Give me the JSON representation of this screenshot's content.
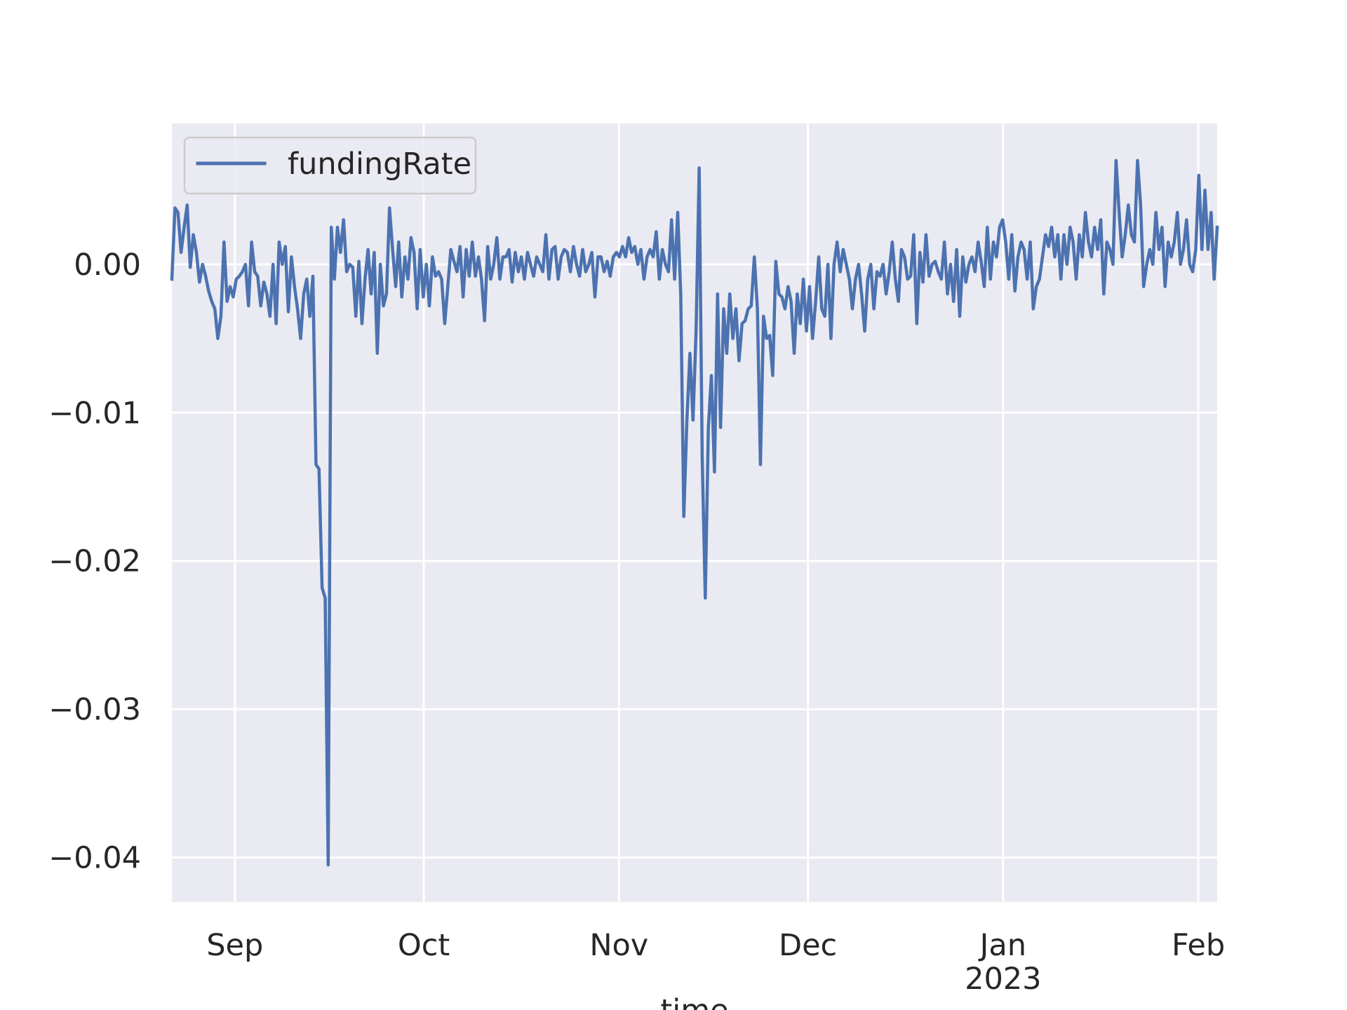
{
  "chart_data": {
    "type": "line",
    "title": "",
    "xlabel": "time",
    "ylabel": "",
    "grid": true,
    "legend_position": "upper-left",
    "x_domain": [
      "2022-08-22",
      "2023-02-04"
    ],
    "ylim": [
      -0.043,
      0.0095
    ],
    "x_ticks": [
      {
        "date": "2022-09-01",
        "label": "Sep",
        "sublabel": ""
      },
      {
        "date": "2022-10-01",
        "label": "Oct",
        "sublabel": ""
      },
      {
        "date": "2022-11-01",
        "label": "Nov",
        "sublabel": ""
      },
      {
        "date": "2022-12-01",
        "label": "Dec",
        "sublabel": ""
      },
      {
        "date": "2023-01-01",
        "label": "Jan",
        "sublabel": "2023"
      },
      {
        "date": "2023-02-01",
        "label": "Feb",
        "sublabel": ""
      }
    ],
    "y_ticks": [
      {
        "value": 0.0,
        "label": "0.00"
      },
      {
        "value": -0.01,
        "label": "−0.01"
      },
      {
        "value": -0.02,
        "label": "−0.02"
      },
      {
        "value": -0.03,
        "label": "−0.03"
      },
      {
        "value": -0.04,
        "label": "−0.04"
      }
    ],
    "series": [
      {
        "name": "fundingRate",
        "color": "#4c72b0",
        "start": "2022-08-22",
        "step_days": 0.3333,
        "values": [
          -0.001,
          0.0038,
          0.0035,
          0.0008,
          0.0025,
          0.004,
          -0.0002,
          0.002,
          0.0008,
          -0.0012,
          0.0,
          -0.0008,
          -0.0018,
          -0.0025,
          -0.003,
          -0.005,
          -0.0035,
          0.0015,
          -0.0025,
          -0.0015,
          -0.0022,
          -0.001,
          -0.0008,
          -0.0005,
          0.0,
          -0.0028,
          0.0015,
          -0.0005,
          -0.0008,
          -0.0028,
          -0.0012,
          -0.002,
          -0.0035,
          0.0,
          -0.004,
          0.0015,
          0.0,
          0.0012,
          -0.0032,
          0.0005,
          -0.0015,
          -0.003,
          -0.005,
          -0.002,
          -0.001,
          -0.0035,
          -0.0008,
          -0.0135,
          -0.0138,
          -0.0218,
          -0.0225,
          -0.0405,
          0.0025,
          -0.001,
          0.0025,
          0.0008,
          0.003,
          -0.0005,
          0.0,
          -0.0002,
          -0.0035,
          0.0002,
          -0.004,
          -0.001,
          0.001,
          -0.002,
          0.0008,
          -0.006,
          0.0,
          -0.0028,
          -0.002,
          0.0038,
          0.001,
          -0.0015,
          0.0015,
          -0.0022,
          0.0005,
          -0.001,
          0.0018,
          0.0008,
          -0.003,
          0.001,
          -0.0022,
          0.0,
          -0.0028,
          0.0005,
          -0.0008,
          -0.0005,
          -0.001,
          -0.004,
          -0.0015,
          0.001,
          0.0002,
          -0.0005,
          0.0012,
          -0.0022,
          0.001,
          -0.0008,
          0.0015,
          -0.0008,
          0.0005,
          -0.001,
          -0.0038,
          0.0012,
          -0.001,
          0.0,
          0.0018,
          -0.001,
          0.0005,
          0.0005,
          0.001,
          -0.0012,
          0.0008,
          -0.0005,
          0.0005,
          -0.001,
          0.0008,
          0.0,
          -0.0008,
          0.0005,
          0.0,
          -0.0005,
          0.002,
          -0.001,
          0.001,
          0.0012,
          -0.001,
          0.0005,
          0.001,
          0.0008,
          -0.0005,
          0.0012,
          0.0,
          -0.0008,
          0.001,
          -0.0005,
          0.0,
          0.0008,
          -0.0022,
          0.0005,
          0.0005,
          -0.0005,
          0.0002,
          -0.0008,
          0.0005,
          0.0008,
          0.0005,
          0.0012,
          0.0005,
          0.0018,
          0.0008,
          0.0012,
          0.0,
          0.001,
          -0.001,
          0.0005,
          0.001,
          0.0005,
          0.0022,
          -0.001,
          0.001,
          0.0,
          -0.0005,
          0.003,
          -0.001,
          0.0035,
          -0.002,
          -0.017,
          -0.0105,
          -0.006,
          -0.0105,
          -0.0045,
          0.0065,
          -0.013,
          -0.0225,
          -0.011,
          -0.0075,
          -0.014,
          -0.002,
          -0.011,
          -0.003,
          -0.006,
          -0.002,
          -0.005,
          -0.003,
          -0.0065,
          -0.004,
          -0.0038,
          -0.003,
          -0.0028,
          0.0005,
          -0.003,
          -0.0135,
          -0.0035,
          -0.005,
          -0.0048,
          -0.0075,
          0.0002,
          -0.002,
          -0.0022,
          -0.003,
          -0.0015,
          -0.0025,
          -0.006,
          -0.002,
          -0.004,
          -0.001,
          -0.0045,
          -0.0015,
          -0.005,
          -0.0025,
          0.0005,
          -0.003,
          -0.0035,
          0.0,
          -0.005,
          0.0,
          0.0015,
          -0.0005,
          0.001,
          0.0,
          -0.001,
          -0.003,
          -0.001,
          0.0,
          -0.002,
          -0.0045,
          -0.001,
          0.0,
          -0.003,
          -0.0005,
          -0.0008,
          0.0,
          -0.002,
          -0.0005,
          0.0015,
          -0.001,
          -0.0025,
          0.001,
          0.0005,
          -0.001,
          -0.0008,
          0.002,
          -0.004,
          0.0008,
          -0.0012,
          0.002,
          -0.0008,
          0.0,
          0.0002,
          -0.0005,
          -0.001,
          0.0015,
          -0.002,
          0.0,
          -0.0025,
          0.001,
          -0.0035,
          0.0005,
          -0.0012,
          0.0,
          0.0005,
          -0.0005,
          0.0015,
          0.0002,
          -0.0015,
          0.0025,
          -0.001,
          0.0015,
          0.0005,
          0.0025,
          0.003,
          0.0015,
          -0.001,
          0.002,
          -0.0018,
          0.0005,
          0.0015,
          0.001,
          -0.001,
          0.0015,
          -0.003,
          -0.0015,
          -0.001,
          0.0005,
          0.002,
          0.0012,
          0.0025,
          0.0005,
          0.002,
          -0.001,
          0.002,
          0.0,
          0.0025,
          0.0015,
          -0.001,
          0.002,
          0.0005,
          0.0035,
          0.0015,
          0.0005,
          0.0025,
          0.001,
          0.003,
          -0.002,
          0.0015,
          0.001,
          0.0,
          0.007,
          0.0035,
          0.0005,
          0.002,
          0.004,
          0.002,
          0.0015,
          0.007,
          0.004,
          -0.0015,
          0.0,
          0.001,
          0.0,
          0.0035,
          0.001,
          0.0025,
          -0.0015,
          0.0015,
          0.0005,
          0.0015,
          0.0035,
          0.0,
          0.001,
          0.003,
          0.0,
          -0.0005,
          0.001,
          0.006,
          0.001,
          0.005,
          0.001,
          0.0035,
          -0.001,
          0.0025
        ]
      }
    ]
  }
}
